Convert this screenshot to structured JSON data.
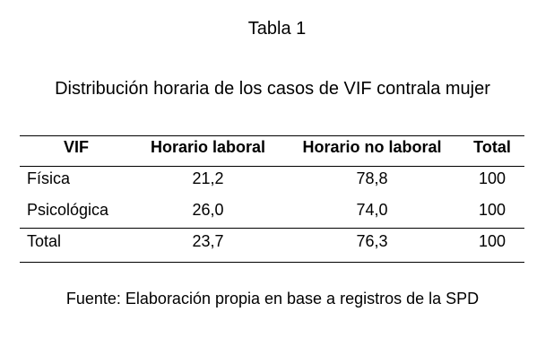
{
  "title": "Tabla 1",
  "subtitle": "Distribución horaria de los casos de VIF contrala mujer",
  "table": {
    "header": [
      "VIF",
      "Horario laboral",
      "Horario no laboral",
      "Total"
    ],
    "rows": [
      [
        "Física",
        "21,2",
        "78,8",
        "100"
      ],
      [
        "Psicológica",
        "26,0",
        "74,0",
        "100"
      ],
      [
        "Total",
        "23,7",
        "76,3",
        "100"
      ]
    ]
  },
  "source": "Fuente: Elaboración propia en base a registros de la SPD"
}
